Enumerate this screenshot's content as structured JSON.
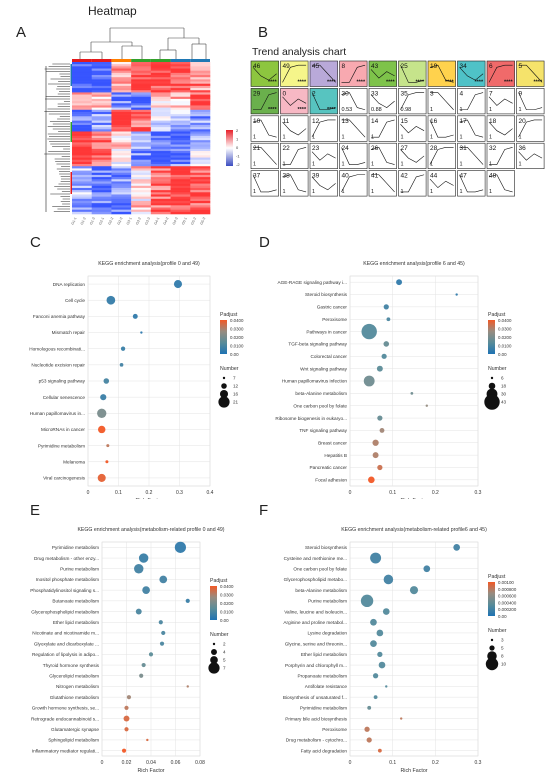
{
  "panel_letters": {
    "a": "A",
    "b": "B",
    "c": "C",
    "d": "D",
    "e": "E",
    "f": "F"
  },
  "heatmap": {
    "title": "Heatmap",
    "samples": [
      "G1-1",
      "G1-2",
      "G1-3",
      "G2-1",
      "G2-2",
      "G2-3",
      "G3-1",
      "G3-2",
      "G3-3",
      "G4-1",
      "G4-2",
      "G4-3",
      "G5-1",
      "G5-2",
      "G5-3"
    ],
    "group_colors": [
      "#e31a1c",
      "#e31a1c",
      "#ff7f00",
      "#33a02c",
      "#33a02c",
      "#1f78b4",
      "#1f78b4"
    ],
    "scale_labels": [
      "2",
      "1",
      "0",
      "-1",
      "-2"
    ]
  },
  "trend": {
    "title": "Trend analysis chart",
    "profiles": [
      {
        "n": "46",
        "stars": "****",
        "fill": "#8dc63f"
      },
      {
        "n": "49",
        "stars": "****",
        "fill": "#f5f58a"
      },
      {
        "n": "45",
        "stars": "****",
        "fill": "#b9a9d9"
      },
      {
        "n": "8",
        "stars": "****",
        "fill": "#f8a9b0"
      },
      {
        "n": "43",
        "stars": "****",
        "fill": "#7ec34a"
      },
      {
        "n": "25",
        "stars": "****",
        "fill": "#c6e48b"
      },
      {
        "n": "19",
        "stars": "****",
        "fill": "#ffd24d"
      },
      {
        "n": "34",
        "stars": "****",
        "fill": "#4fc2c7"
      },
      {
        "n": "6",
        "stars": "****",
        "fill": "#f06a6a"
      },
      {
        "n": "5",
        "stars": "****",
        "fill": "#f5e36b"
      },
      {
        "n": "29",
        "stars": "****",
        "fill": "#6ab04c"
      },
      {
        "n": "0",
        "stars": "****",
        "fill": "#f7b8c4"
      },
      {
        "n": "2",
        "stars": "****",
        "fill": "#57c4c0"
      },
      {
        "n": "30",
        "sub": "0.53",
        "fill": "#fff"
      },
      {
        "n": "33",
        "sub": "0.88",
        "fill": "#fff"
      },
      {
        "n": "35",
        "sub": "0.98",
        "fill": "#fff"
      },
      {
        "n": "3",
        "sub": "1",
        "fill": "#fff"
      },
      {
        "n": "4",
        "sub": "1",
        "fill": "#fff"
      },
      {
        "n": "7",
        "sub": "1",
        "fill": "#fff"
      },
      {
        "n": "9",
        "sub": "1",
        "fill": "#fff"
      },
      {
        "n": "10",
        "sub": "1",
        "fill": "#fff"
      },
      {
        "n": "11",
        "sub": "1",
        "fill": "#fff"
      },
      {
        "n": "12",
        "sub": "1",
        "fill": "#fff"
      },
      {
        "n": "13",
        "sub": "1",
        "fill": "#fff"
      },
      {
        "n": "14",
        "sub": "1",
        "fill": "#fff"
      },
      {
        "n": "15",
        "sub": "1",
        "fill": "#fff"
      },
      {
        "n": "16",
        "sub": "1",
        "fill": "#fff"
      },
      {
        "n": "17",
        "sub": "1",
        "fill": "#fff"
      },
      {
        "n": "18",
        "sub": "1",
        "fill": "#fff"
      },
      {
        "n": "20",
        "sub": "1",
        "fill": "#fff"
      },
      {
        "n": "21",
        "sub": "1",
        "fill": "#fff"
      },
      {
        "n": "22",
        "sub": "1",
        "fill": "#fff"
      },
      {
        "n": "23",
        "sub": "1",
        "fill": "#fff"
      },
      {
        "n": "24",
        "sub": "1",
        "fill": "#fff"
      },
      {
        "n": "26",
        "sub": "1",
        "fill": "#fff"
      },
      {
        "n": "27",
        "sub": "1",
        "fill": "#fff"
      },
      {
        "n": "28",
        "sub": "1",
        "fill": "#fff"
      },
      {
        "n": "31",
        "sub": "1",
        "fill": "#fff"
      },
      {
        "n": "32",
        "sub": "1",
        "fill": "#fff"
      },
      {
        "n": "36",
        "sub": "1",
        "fill": "#fff"
      },
      {
        "n": "37",
        "sub": "1",
        "fill": "#fff"
      },
      {
        "n": "38",
        "sub": "1",
        "fill": "#fff"
      },
      {
        "n": "39",
        "sub": "1",
        "fill": "#fff"
      },
      {
        "n": "40",
        "sub": "1",
        "fill": "#fff"
      },
      {
        "n": "41",
        "sub": "1",
        "fill": "#fff"
      },
      {
        "n": "42",
        "sub": "1",
        "fill": "#fff"
      },
      {
        "n": "44",
        "sub": "1",
        "fill": "#fff"
      },
      {
        "n": "47",
        "sub": "1",
        "fill": "#fff"
      },
      {
        "n": "48",
        "sub": "1",
        "fill": "#fff"
      }
    ]
  },
  "chart_data": [
    {
      "id": "C",
      "type": "scatter",
      "title": "KEGG enrichment analysis(profile 0 and 49)",
      "xlabel": "Rich Factor",
      "xlim": [
        0,
        0.4
      ],
      "xticks": [
        "0",
        "0.1",
        "0.2",
        "0.3",
        "0.4"
      ],
      "color_title": "Padjust",
      "color_ticks": [
        "0.0400",
        "0.0300",
        "0.0200",
        "0.0100",
        "0.00"
      ],
      "size_title": "Number",
      "size_ticks": [
        "7",
        "12",
        "16",
        "21"
      ],
      "size_range": [
        7,
        21
      ],
      "color_range": [
        0,
        0.04
      ],
      "terms": [
        "DNA replication",
        "Cell cycle",
        "Fanconi anemia pathway",
        "Mismatch repair",
        "Homologous recombinati...",
        "Nucleotide excision repair",
        "p53 signaling pathway",
        "Cellular senescence",
        "Human papillomavirus in...",
        "MicroRNAs in cancer",
        "Pyrimidine metabolism",
        "Melanoma",
        "Viral carcinogenesis"
      ],
      "x": [
        0.295,
        0.075,
        0.155,
        0.175,
        0.115,
        0.11,
        0.06,
        0.05,
        0.045,
        0.045,
        0.065,
        0.062,
        0.045
      ],
      "size": [
        16,
        17,
        11,
        7,
        10,
        9,
        12,
        13,
        18,
        15,
        8,
        8,
        16
      ],
      "padj": [
        0.004,
        0.005,
        0.004,
        0.003,
        0.006,
        0.008,
        0.009,
        0.006,
        0.02,
        0.04,
        0.032,
        0.04,
        0.038
      ]
    },
    {
      "id": "D",
      "type": "scatter",
      "title": "KEGG enrichment analysis(profile 6 and 45)",
      "xlabel": "Rich Factor",
      "xlim": [
        0,
        0.3
      ],
      "xticks": [
        "0",
        "0.1",
        "0.2",
        "0.3"
      ],
      "color_title": "Padjust",
      "color_ticks": [
        "0.0400",
        "0.0300",
        "0.0200",
        "0.0100",
        "0.00"
      ],
      "size_title": "Number",
      "size_ticks": [
        "6",
        "18",
        "30",
        "43"
      ],
      "size_range": [
        6,
        43
      ],
      "color_range": [
        0,
        0.04
      ],
      "terms": [
        "AGE-RAGE signaling pathway i...",
        "Steroid biosynthesis",
        "Gastric cancer",
        "Peroxisome",
        "Pathways in cancer",
        "TGF-beta signaling pathway",
        "Colorectal cancer",
        "Wnt signaling pathway",
        "Human papillomavirus infection",
        "beta-Alanine metabolism",
        "One carbon pool by folate",
        "Ribosome biogenesis in eukaryo...",
        "TNF signaling pathway",
        "Breast cancer",
        "Hepatitis B",
        "Pancreatic cancer",
        "Focal adhesion"
      ],
      "x": [
        0.115,
        0.25,
        0.085,
        0.09,
        0.045,
        0.085,
        0.08,
        0.07,
        0.045,
        0.145,
        0.18,
        0.07,
        0.075,
        0.06,
        0.06,
        0.07,
        0.05
      ],
      "size": [
        16,
        6,
        14,
        10,
        43,
        15,
        14,
        16,
        30,
        7,
        6,
        14,
        13,
        17,
        16,
        14,
        18
      ],
      "padj": [
        0.004,
        0.004,
        0.008,
        0.01,
        0.012,
        0.016,
        0.012,
        0.014,
        0.018,
        0.018,
        0.026,
        0.016,
        0.028,
        0.03,
        0.03,
        0.034,
        0.04
      ]
    },
    {
      "id": "E",
      "type": "scatter",
      "title": "KEGG enrichment analysis(metabolism-related profile 0 and 49)",
      "xlabel": "Rich Factor",
      "xlim": [
        0,
        0.08
      ],
      "xticks": [
        "0",
        "0.02",
        "0.04",
        "0.06",
        "0.08"
      ],
      "color_title": "Padjust",
      "color_ticks": [
        "0.0400",
        "0.0300",
        "0.0200",
        "0.0100",
        "0.00"
      ],
      "size_title": "Number",
      "size_ticks": [
        "2",
        "4",
        "5",
        "7"
      ],
      "size_range": [
        2,
        7
      ],
      "color_range": [
        0,
        0.04
      ],
      "terms": [
        "Pyrimidine metabolism",
        "Drug metabolism - other enzy...",
        "Purine metabolism",
        "Inositol phosphate metabolism",
        "Phosphatidylinositol signaling s...",
        "Butanoate metabolism",
        "Glycerophospholipid metabolism",
        "Ether lipid metabolism",
        "Nicotinate and nicotinamide m...",
        "Glyoxylate and dicarboxylate ...",
        "Regulation of lipolysis in adipo...",
        "Thyroid hormone synthesis",
        "Glycerolipid metabolism",
        "Nitrogen metabolism",
        "Glutathione metabolism",
        "Growth hormone synthesis, se...",
        "Retrograde endocannabinoid s...",
        "Glutamatergic synapse",
        "Sphingolipid metabolism",
        "Inflammatory mediator regulati..."
      ],
      "x": [
        0.064,
        0.034,
        0.03,
        0.05,
        0.036,
        0.07,
        0.03,
        0.048,
        0.05,
        0.049,
        0.04,
        0.034,
        0.032,
        0.07,
        0.022,
        0.02,
        0.02,
        0.02,
        0.037,
        0.018
      ],
      "size": [
        7,
        6,
        6,
        5,
        5,
        3,
        4,
        3,
        3,
        3,
        3,
        3,
        3,
        2,
        3,
        3,
        4,
        3,
        2,
        3
      ],
      "padj": [
        0.004,
        0.006,
        0.008,
        0.008,
        0.008,
        0.006,
        0.01,
        0.01,
        0.01,
        0.01,
        0.014,
        0.016,
        0.02,
        0.03,
        0.028,
        0.032,
        0.036,
        0.036,
        0.036,
        0.04
      ]
    },
    {
      "id": "F",
      "type": "scatter",
      "title": "KEGG enrichment analysis(metabolism-related profile6 and 45)",
      "xlabel": "Rich Factor",
      "xlim": [
        0,
        0.3
      ],
      "xticks": [
        "0",
        "0.1",
        "0.2",
        "0.3"
      ],
      "color_title": "Padjust",
      "color_ticks": [
        "0.00100",
        "0.000800",
        "0.000600",
        "0.000400",
        "0.000200",
        "0.00"
      ],
      "size_title": "Number",
      "size_ticks": [
        "3",
        "5",
        "8",
        "10"
      ],
      "size_range": [
        3,
        10
      ],
      "color_range": [
        0,
        0.001
      ],
      "terms": [
        "Steroid biosynthesis",
        "Cysteine and methionine me...",
        "One carbon pool by folate",
        "Glycerophospholipid metabo...",
        "beta-Alanine metabolism",
        "Purine metabolism",
        "Valine, leucine and isoleucin...",
        "Arginine and proline metabol...",
        "Lysine degradation",
        "Glycine, serine and threonin...",
        "Ether lipid metabolism",
        "Porphyrin and chlorophyll m...",
        "Propanoate metabolism",
        "Antifolate resistance",
        "Biosynthesis of unsaturated f...",
        "Pyrimidine metabolism",
        "Primary bile acid biosynthesis",
        "Peroxisome",
        "Drug metabolism - cytochro...",
        "Fatty acid degradation"
      ],
      "x": [
        0.25,
        0.06,
        0.18,
        0.09,
        0.15,
        0.04,
        0.085,
        0.055,
        0.07,
        0.055,
        0.07,
        0.075,
        0.06,
        0.085,
        0.06,
        0.045,
        0.12,
        0.04,
        0.045,
        0.07
      ],
      "size": [
        6,
        9,
        6,
        8,
        7,
        10,
        6,
        6,
        6,
        6,
        5,
        6,
        5,
        3,
        4,
        4,
        3,
        5,
        5,
        4
      ],
      "padj": [
        0.0002,
        0.0002,
        0.0002,
        0.0002,
        0.0003,
        0.0003,
        0.0003,
        0.0003,
        0.0003,
        0.0003,
        0.0003,
        0.0003,
        0.0003,
        0.0003,
        0.0003,
        0.0004,
        0.0008,
        0.0008,
        0.0008,
        0.0009
      ]
    }
  ]
}
